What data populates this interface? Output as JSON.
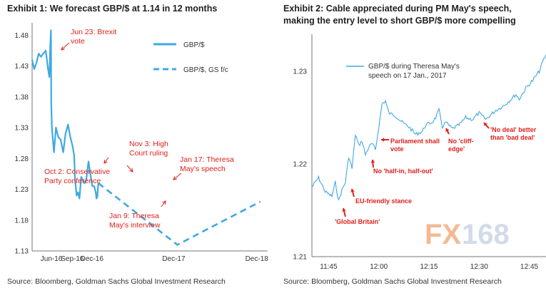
{
  "chart_data": [
    {
      "type": "line",
      "title": "Exhibit 1: We forecast GBP/$ at 1.14 in 12 months",
      "source": "Source: Bloomberg, Goldman Sachs Global Investment Research",
      "ylim": [
        1.13,
        1.5
      ],
      "y_ticks": [
        "1.48",
        "1.43",
        "1.38",
        "1.33",
        "1.28",
        "1.23",
        "1.18",
        "1.13"
      ],
      "x_ticks": [
        "Jun-16",
        "Sep-16",
        "Dec-16",
        "Dec-17",
        "Dec-18"
      ],
      "legend_position": "top-right",
      "series": [
        {
          "name": "GBP/$",
          "style": "solid",
          "color": "#3fa9e0",
          "points": [
            [
              "2016-04-01",
              1.44
            ],
            [
              "2016-04-10",
              1.425
            ],
            [
              "2016-04-20",
              1.435
            ],
            [
              "2016-04-30",
              1.45
            ],
            [
              "2016-05-10",
              1.445
            ],
            [
              "2016-05-20",
              1.45
            ],
            [
              "2016-05-31",
              1.455
            ],
            [
              "2016-06-10",
              1.425
            ],
            [
              "2016-06-16",
              1.412
            ],
            [
              "2016-06-20",
              1.465
            ],
            [
              "2016-06-23",
              1.488
            ],
            [
              "2016-06-24",
              1.37
            ],
            [
              "2016-06-27",
              1.33
            ],
            [
              "2016-07-06",
              1.29
            ],
            [
              "2016-07-15",
              1.33
            ],
            [
              "2016-07-25",
              1.315
            ],
            [
              "2016-08-05",
              1.31
            ],
            [
              "2016-08-16",
              1.29
            ],
            [
              "2016-08-26",
              1.32
            ],
            [
              "2016-09-06",
              1.335
            ],
            [
              "2016-09-16",
              1.315
            ],
            [
              "2016-09-26",
              1.3
            ],
            [
              "2016-10-03",
              1.285
            ],
            [
              "2016-10-07",
              1.245
            ],
            [
              "2016-10-14",
              1.22
            ],
            [
              "2016-10-20",
              1.225
            ],
            [
              "2016-10-26",
              1.215
            ],
            [
              "2016-11-03",
              1.25
            ],
            [
              "2016-11-10",
              1.245
            ],
            [
              "2016-11-18",
              1.24
            ],
            [
              "2016-11-25",
              1.245
            ],
            [
              "2016-12-05",
              1.275
            ],
            [
              "2016-12-15",
              1.25
            ],
            [
              "2016-12-22",
              1.235
            ],
            [
              "2016-12-30",
              1.235
            ],
            [
              "2017-01-06",
              1.225
            ],
            [
              "2017-01-09",
              1.215
            ],
            [
              "2017-01-13",
              1.218
            ],
            [
              "2017-01-17",
              1.24
            ]
          ]
        },
        {
          "name": "GBP/$, GS f/c",
          "style": "dashed",
          "color": "#3fa9e0",
          "points": [
            [
              "2017-01-17",
              1.24
            ],
            [
              "2017-12-31",
              1.14
            ],
            [
              "2018-12-31",
              1.21
            ]
          ]
        }
      ],
      "annotations": [
        {
          "text": [
            "Jun 23: Brexit",
            "vote"
          ],
          "date": "2016-06-23",
          "value": 1.488
        },
        {
          "text": [
            "Oct 2: Conservative",
            "Party conference"
          ],
          "date": "2016-10-02",
          "value": 1.285
        },
        {
          "text": [
            "Nov 3: High",
            "Court ruling"
          ],
          "date": "2016-11-03",
          "value": 1.25
        },
        {
          "text": [
            "Jan 9: Theresa",
            "May's interview"
          ],
          "date": "2017-01-09",
          "value": 1.215
        },
        {
          "text": [
            "Jan 17: Theresa",
            "May's speech"
          ],
          "date": "2017-01-17",
          "value": 1.24
        }
      ]
    },
    {
      "type": "line",
      "title": "Exhibit 2: Cable appreciated during PM May's speech, making the entry level to short GBP/$ more compelling",
      "source": "Source: Bloomberg, Goldman Sachs Global Investment Research",
      "ylim": [
        1.21,
        1.235
      ],
      "y_ticks": [
        "1.23",
        "1.22",
        "1.21"
      ],
      "x_ticks": [
        "11:45",
        "12:00",
        "12:15",
        "12:30",
        "12:45"
      ],
      "legend_position": "top-left",
      "series": [
        {
          "name": "GBP/$ during Theresa May's speech on 17 Jan., 2017",
          "style": "solid",
          "color": "#3fa9e0",
          "points": [
            [
              "11:40",
              1.2175
            ],
            [
              "11:42",
              1.2185
            ],
            [
              "11:44",
              1.217
            ],
            [
              "11:46",
              1.2165
            ],
            [
              "11:47",
              1.218
            ],
            [
              "11:48",
              1.216
            ],
            [
              "11:49",
              1.2172
            ],
            [
              "11:50",
              1.218
            ],
            [
              "11:51",
              1.2208
            ],
            [
              "11:52",
              1.2195
            ],
            [
              "11:53",
              1.2232
            ],
            [
              "11:54",
              1.222
            ],
            [
              "11:55",
              1.2225
            ],
            [
              "11:56",
              1.221
            ],
            [
              "11:57",
              1.2218
            ],
            [
              "11:58",
              1.2222
            ],
            [
              "11:59",
              1.2215
            ],
            [
              "12:00",
              1.224
            ],
            [
              "12:01",
              1.2265
            ],
            [
              "12:02",
              1.2268
            ],
            [
              "12:03",
              1.2255
            ],
            [
              "12:05",
              1.2252
            ],
            [
              "12:07",
              1.2245
            ],
            [
              "12:09",
              1.224
            ],
            [
              "12:11",
              1.2232
            ],
            [
              "12:13",
              1.2235
            ],
            [
              "12:14",
              1.2242
            ],
            [
              "12:16",
              1.2245
            ],
            [
              "12:17",
              1.225
            ],
            [
              "12:18",
              1.2258
            ],
            [
              "12:19",
              1.224
            ],
            [
              "12:20",
              1.2245
            ],
            [
              "12:22",
              1.2238
            ],
            [
              "12:24",
              1.2242
            ],
            [
              "12:26",
              1.225
            ],
            [
              "12:28",
              1.2248
            ],
            [
              "12:30",
              1.2255
            ],
            [
              "12:32",
              1.2248
            ],
            [
              "12:35",
              1.2258
            ],
            [
              "12:37",
              1.2262
            ],
            [
              "12:39",
              1.2268
            ],
            [
              "12:41",
              1.2275
            ],
            [
              "12:42",
              1.227
            ],
            [
              "12:44",
              1.2282
            ],
            [
              "12:46",
              1.229
            ],
            [
              "12:48",
              1.23
            ],
            [
              "12:49",
              1.231
            ],
            [
              "12:50",
              1.2318
            ]
          ]
        }
      ],
      "annotations": [
        {
          "text": [
            "'Global Britain'"
          ],
          "time": "11:48",
          "value": 1.216
        },
        {
          "text": [
            "EU-friendly stance"
          ],
          "time": "11:51",
          "value": 1.2208
        },
        {
          "text": [
            "No 'half-in, half-out'"
          ],
          "time": "11:57",
          "value": 1.2218
        },
        {
          "text": [
            "Parliament shall",
            "vote"
          ],
          "time": "12:00",
          "value": 1.224
        },
        {
          "text": [
            "No 'cliff-",
            "edge'"
          ],
          "time": "12:18",
          "value": 1.225
        },
        {
          "text": [
            "'No deal' better",
            "than 'bad deal'"
          ],
          "time": "12:26",
          "value": 1.225
        }
      ]
    }
  ],
  "watermark": {
    "text_fx": "FX",
    "text_num": "168",
    "color_fx": "#f2b28a",
    "color_num": "#cfd6e6"
  }
}
